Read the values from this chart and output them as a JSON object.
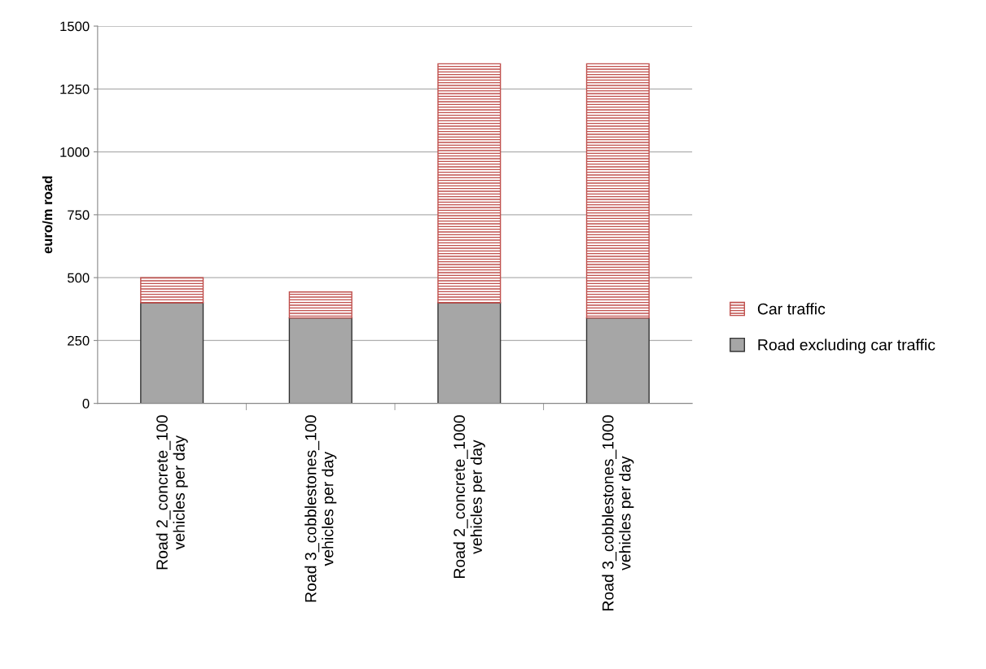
{
  "chart_data": {
    "type": "bar",
    "stacked": true,
    "ylabel": "euro/m road",
    "categories": [
      "Road 2_concrete_100\nvehicles per day",
      "Road 3_cobblestones_100\nvehicles per day",
      "Road 2_concrete_1000\nvehicles per day",
      "Road 3_cobblestones_1000\nvehicles per day"
    ],
    "series": [
      {
        "name": "Road excluding car traffic",
        "color": "#a6a6a6",
        "values": [
          400,
          340,
          400,
          340
        ]
      },
      {
        "name": "Car traffic",
        "color": "#c0504d",
        "values": [
          100,
          103,
          950,
          1010
        ]
      }
    ],
    "ylim": [
      0,
      1500
    ],
    "yticks": [
      0,
      250,
      500,
      750,
      1000,
      1250,
      1500
    ],
    "grid": "y",
    "legend": "right"
  }
}
